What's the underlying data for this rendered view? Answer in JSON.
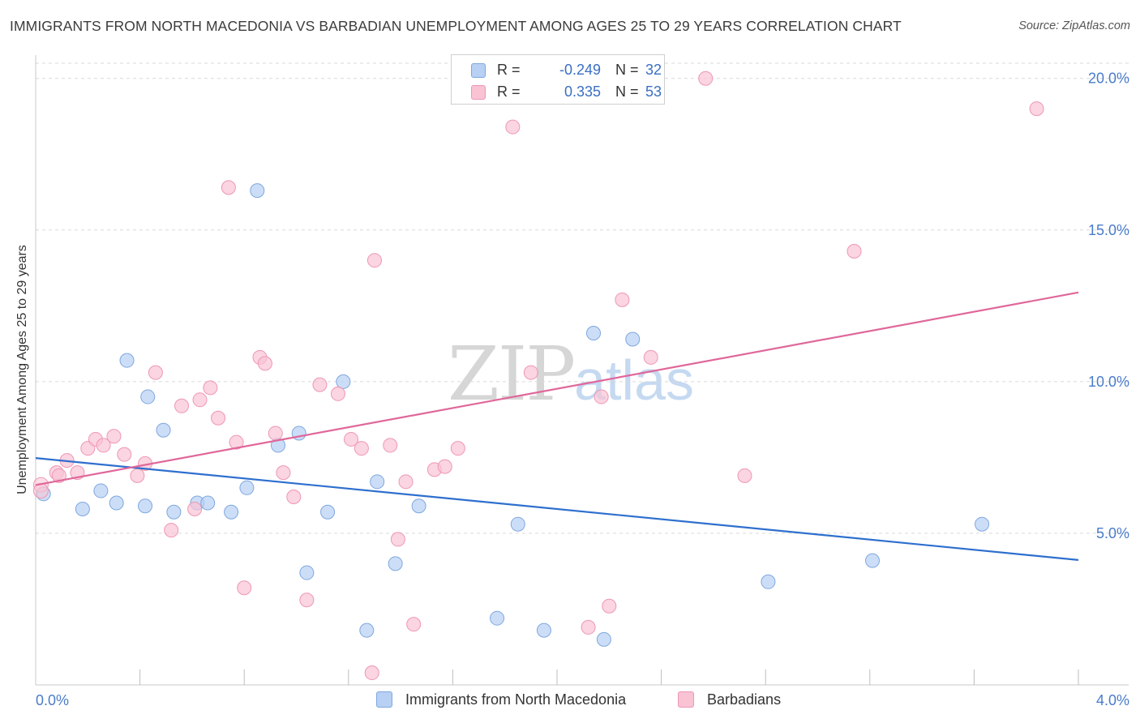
{
  "title": "IMMIGRANTS FROM NORTH MACEDONIA VS BARBADIAN UNEMPLOYMENT AMONG AGES 25 TO 29 YEARS CORRELATION CHART",
  "source": "Source: ZipAtlas.com",
  "watermark": {
    "zip": "ZIP",
    "atlas": "atlas"
  },
  "colors": {
    "blue_fill": "#b7d0f3",
    "blue_stroke": "#7fa7df",
    "blue_line": "#2e6fce",
    "pink_fill": "#f9c3d4",
    "pink_stroke": "#ee97b3",
    "pink_line": "#e0679a",
    "grid": "#d9d9d9",
    "tick_text": "#4a7cc9"
  },
  "legend": {
    "rows": [
      {
        "r_label": "R =",
        "r_value": "-0.249",
        "n_label": "N =",
        "n_value": "32"
      },
      {
        "r_label": "R =",
        "r_value": "0.335",
        "n_label": "N =",
        "n_value": "53"
      }
    ]
  },
  "bottom_legend": [
    "Immigrants from North Macedonia",
    "Barbadians"
  ],
  "chart_data": {
    "type": "scatter",
    "title": "IMMIGRANTS FROM NORTH MACEDONIA VS BARBADIAN UNEMPLOYMENT AMONG AGES 25 TO 29 YEARS CORRELATION CHART",
    "xlabel": "",
    "ylabel": "Unemployment Among Ages 25 to 29 years",
    "xlim": [
      0,
      4
    ],
    "ylim": [
      0,
      20.5
    ],
    "x_tick_labels": [
      "0.0%",
      "4.0%"
    ],
    "y_ticks": [
      5,
      10,
      15,
      20
    ],
    "y_tick_labels": [
      "5.0%",
      "10.0%",
      "15.0%",
      "20.0%"
    ],
    "series": [
      {
        "name": "Immigrants from North Macedonia",
        "color_key": "blue",
        "points": [
          [
            0.03,
            6.3
          ],
          [
            0.18,
            5.8
          ],
          [
            0.25,
            6.4
          ],
          [
            0.31,
            6.0
          ],
          [
            0.42,
            5.9
          ],
          [
            0.35,
            10.7
          ],
          [
            0.43,
            9.5
          ],
          [
            0.49,
            8.4
          ],
          [
            0.53,
            5.7
          ],
          [
            0.62,
            6.0
          ],
          [
            0.66,
            6.0
          ],
          [
            0.75,
            5.7
          ],
          [
            0.81,
            6.5
          ],
          [
            0.85,
            16.3
          ],
          [
            0.93,
            7.9
          ],
          [
            1.01,
            8.3
          ],
          [
            1.04,
            3.7
          ],
          [
            1.12,
            5.7
          ],
          [
            1.18,
            10.0
          ],
          [
            1.27,
            1.8
          ],
          [
            1.31,
            6.7
          ],
          [
            1.38,
            4.0
          ],
          [
            1.47,
            5.9
          ],
          [
            1.77,
            2.2
          ],
          [
            1.85,
            5.3
          ],
          [
            1.95,
            1.8
          ],
          [
            2.14,
            11.6
          ],
          [
            2.18,
            1.5
          ],
          [
            2.29,
            11.4
          ],
          [
            2.81,
            3.4
          ],
          [
            3.21,
            4.1
          ],
          [
            3.63,
            5.3
          ]
        ]
      },
      {
        "name": "Barbadians",
        "color_key": "pink",
        "points": [
          [
            0.02,
            6.6
          ],
          [
            0.08,
            7.0
          ],
          [
            0.09,
            6.9
          ],
          [
            0.12,
            7.4
          ],
          [
            0.16,
            7.0
          ],
          [
            0.2,
            7.8
          ],
          [
            0.23,
            8.1
          ],
          [
            0.26,
            7.9
          ],
          [
            0.3,
            8.2
          ],
          [
            0.34,
            7.6
          ],
          [
            0.39,
            6.9
          ],
          [
            0.42,
            7.3
          ],
          [
            0.46,
            10.3
          ],
          [
            0.52,
            5.1
          ],
          [
            0.56,
            9.2
          ],
          [
            0.61,
            5.8
          ],
          [
            0.63,
            9.4
          ],
          [
            0.67,
            9.8
          ],
          [
            0.7,
            8.8
          ],
          [
            0.74,
            16.4
          ],
          [
            0.77,
            8.0
          ],
          [
            0.8,
            3.2
          ],
          [
            0.86,
            10.8
          ],
          [
            0.88,
            10.6
          ],
          [
            0.92,
            8.3
          ],
          [
            0.95,
            7.0
          ],
          [
            0.99,
            6.2
          ],
          [
            1.04,
            2.8
          ],
          [
            1.09,
            9.9
          ],
          [
            1.16,
            9.6
          ],
          [
            1.21,
            8.1
          ],
          [
            1.25,
            7.8
          ],
          [
            1.29,
            0.4
          ],
          [
            1.3,
            14.0
          ],
          [
            1.36,
            7.9
          ],
          [
            1.39,
            4.8
          ],
          [
            1.42,
            6.7
          ],
          [
            1.45,
            2.0
          ],
          [
            1.53,
            7.1
          ],
          [
            1.57,
            7.2
          ],
          [
            1.62,
            7.8
          ],
          [
            1.83,
            18.4
          ],
          [
            1.9,
            10.3
          ],
          [
            2.12,
            1.9
          ],
          [
            2.17,
            9.5
          ],
          [
            2.2,
            2.6
          ],
          [
            2.25,
            12.7
          ],
          [
            2.36,
            10.8
          ],
          [
            2.57,
            20.0
          ],
          [
            2.72,
            6.9
          ],
          [
            3.14,
            14.3
          ],
          [
            3.84,
            19.0
          ],
          [
            0.02,
            6.4
          ]
        ]
      }
    ],
    "trend_lines": [
      {
        "series": "Immigrants from North Macedonia",
        "x": [
          0,
          4
        ],
        "y": [
          7.48,
          4.12
        ]
      },
      {
        "series": "Barbadians",
        "x": [
          0,
          4
        ],
        "y": [
          6.59,
          12.94
        ]
      }
    ]
  }
}
